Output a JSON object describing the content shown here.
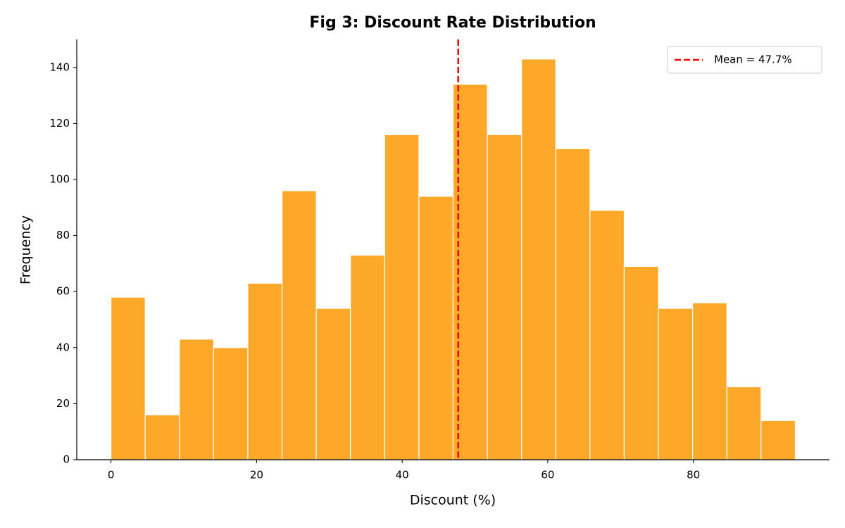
{
  "chart_data": {
    "type": "histogram",
    "title": "Fig 3: Discount Rate Distribution",
    "x_label": "Discount (%)",
    "y_label": "Frequency",
    "bins": [
      0,
      4.7,
      9.4,
      14.1,
      18.8,
      23.5,
      28.2,
      32.9,
      37.6,
      42.3,
      47,
      51.7,
      56.4,
      61.1,
      65.8,
      70.5,
      75.2,
      79.9,
      84.6,
      89.3,
      94
    ],
    "values": [
      58,
      16,
      43,
      40,
      63,
      96,
      54,
      73,
      116,
      94,
      134,
      116,
      143,
      111,
      89,
      69,
      54,
      56,
      26,
      14
    ],
    "color": "#fda829",
    "mean": {
      "value": 47.7,
      "label": "Mean = 47.7%"
    },
    "mean_color": "#ff0000",
    "xlim": [
      -4.7,
      98.7
    ],
    "ylim": [
      0,
      150
    ],
    "xticks": [
      0,
      20,
      40,
      60,
      80
    ],
    "yticks": [
      0,
      20,
      40,
      60,
      80,
      100,
      120,
      140
    ],
    "grid": false,
    "legend": "upper right"
  }
}
